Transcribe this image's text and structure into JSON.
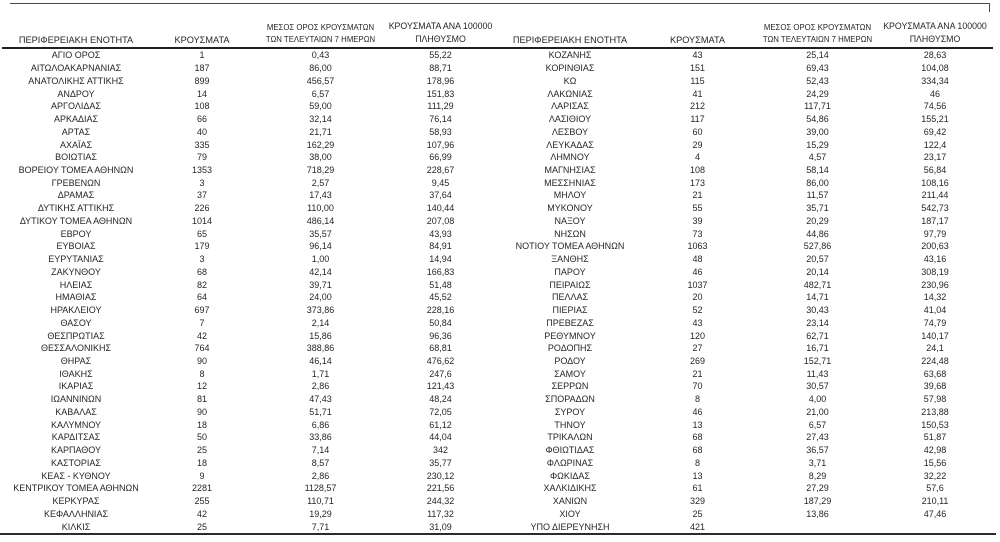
{
  "colors": {
    "text": "#262626",
    "rule": "#2b2b2b",
    "background": "#ffffff"
  },
  "header": {
    "region": "ΠΕΡΙΦΕΡΕΙΑΚΗ ΕΝΟΤΗΤΑ",
    "cases": "ΚΡΟΥΣΜΑΤΑ",
    "avg7_line1": "ΜΕΣΟΣ ΟΡΟΣ ΚΡΟΥΣΜΑΤΩΝ",
    "avg7_line2": "ΤΩΝ ΤΕΛΕΥΤΑΙΩΝ 7 ΗΜΕΡΩΝ",
    "per100k_line1": "ΚΡΟΥΣΜΑΤΑ ΑΝΑ 100000",
    "per100k_line2": "ΠΛΗΘΥΣΜΟ"
  },
  "chart_data": {
    "type": "table",
    "columns": [
      "ΠΕΡΙΦΕΡΕΙΑΚΗ ΕΝΟΤΗΤΑ",
      "ΚΡΟΥΣΜΑΤΑ",
      "ΜΕΣΟΣ ΟΡΟΣ ΚΡΟΥΣΜΑΤΩΝ ΤΩΝ ΤΕΛΕΥΤΑΙΩΝ 7 ΗΜΕΡΩΝ",
      "ΚΡΟΥΣΜΑΤΑ ΑΝΑ 100000 ΠΛΗΘΥΣΜΟ"
    ],
    "left_rows": [
      [
        "ΑΓΙΟ ΟΡΟΣ",
        "1",
        "0,43",
        "55,22"
      ],
      [
        "ΑΙΤΩΛΟΑΚΑΡΝΑΝΙΑΣ",
        "187",
        "86,00",
        "88,71"
      ],
      [
        "ΑΝΑΤΟΛΙΚΗΣ ΑΤΤΙΚΗΣ",
        "899",
        "456,57",
        "178,96"
      ],
      [
        "ΑΝΔΡΟΥ",
        "14",
        "6,57",
        "151,83"
      ],
      [
        "ΑΡΓΟΛΙΔΑΣ",
        "108",
        "59,00",
        "111,29"
      ],
      [
        "ΑΡΚΑΔΙΑΣ",
        "66",
        "32,14",
        "76,14"
      ],
      [
        "ΑΡΤΑΣ",
        "40",
        "21,71",
        "58,93"
      ],
      [
        "ΑΧΑΪΑΣ",
        "335",
        "162,29",
        "107,96"
      ],
      [
        "ΒΟΙΩΤΙΑΣ",
        "79",
        "38,00",
        "66,99"
      ],
      [
        "ΒΟΡΕΙΟΥ ΤΟΜΕΑ ΑΘΗΝΩΝ",
        "1353",
        "718,29",
        "228,67"
      ],
      [
        "ΓΡΕΒΕΝΩΝ",
        "3",
        "2,57",
        "9,45"
      ],
      [
        "ΔΡΑΜΑΣ",
        "37",
        "17,43",
        "37,64"
      ],
      [
        "ΔΥΤΙΚΗΣ ΑΤΤΙΚΗΣ",
        "226",
        "110,00",
        "140,44"
      ],
      [
        "ΔΥΤΙΚΟΥ ΤΟΜΕΑ ΑΘΗΝΩΝ",
        "1014",
        "486,14",
        "207,08"
      ],
      [
        "ΕΒΡΟΥ",
        "65",
        "35,57",
        "43,93"
      ],
      [
        "ΕΥΒΟΙΑΣ",
        "179",
        "96,14",
        "84,91"
      ],
      [
        "ΕΥΡΥΤΑΝΙΑΣ",
        "3",
        "1,00",
        "14,94"
      ],
      [
        "ΖΑΚΥΝΘΟΥ",
        "68",
        "42,14",
        "166,83"
      ],
      [
        "ΗΛΕΙΑΣ",
        "82",
        "39,71",
        "51,48"
      ],
      [
        "ΗΜΑΘΙΑΣ",
        "64",
        "24,00",
        "45,52"
      ],
      [
        "ΗΡΑΚΛΕΙΟΥ",
        "697",
        "373,86",
        "228,16"
      ],
      [
        "ΘΑΣΟΥ",
        "7",
        "2,14",
        "50,84"
      ],
      [
        "ΘΕΣΠΡΩΤΙΑΣ",
        "42",
        "15,86",
        "96,36"
      ],
      [
        "ΘΕΣΣΑΛΟΝΙΚΗΣ",
        "764",
        "388,86",
        "68,81"
      ],
      [
        "ΘΗΡΑΣ",
        "90",
        "46,14",
        "476,62"
      ],
      [
        "ΙΘΑΚΗΣ",
        "8",
        "1,71",
        "247,6"
      ],
      [
        "ΙΚΑΡΙΑΣ",
        "12",
        "2,86",
        "121,43"
      ],
      [
        "ΙΩΑΝΝΙΝΩΝ",
        "81",
        "47,43",
        "48,24"
      ],
      [
        "ΚΑΒΑΛΑΣ",
        "90",
        "51,71",
        "72,05"
      ],
      [
        "ΚΑΛΥΜΝΟΥ",
        "18",
        "6,86",
        "61,12"
      ],
      [
        "ΚΑΡΔΙΤΣΑΣ",
        "50",
        "33,86",
        "44,04"
      ],
      [
        "ΚΑΡΠΑΘΟΥ",
        "25",
        "7,14",
        "342"
      ],
      [
        "ΚΑΣΤΟΡΙΑΣ",
        "18",
        "8,57",
        "35,77"
      ],
      [
        "ΚΕΑΣ - ΚΥΘΝΟΥ",
        "9",
        "2,86",
        "230,12"
      ],
      [
        "ΚΕΝΤΡΙΚΟΥ ΤΟΜΕΑ ΑΘΗΝΩΝ",
        "2281",
        "1128,57",
        "221,56"
      ],
      [
        "ΚΕΡΚΥΡΑΣ",
        "255",
        "110,71",
        "244,32"
      ],
      [
        "ΚΕΦΑΛΛΗΝΙΑΣ",
        "42",
        "19,29",
        "117,32"
      ],
      [
        "ΚΙΛΚΙΣ",
        "25",
        "7,71",
        "31,09"
      ]
    ],
    "right_rows": [
      [
        "ΚΟΖΑΝΗΣ",
        "43",
        "25,14",
        "28,63"
      ],
      [
        "ΚΟΡΙΝΘΙΑΣ",
        "151",
        "69,43",
        "104,08"
      ],
      [
        "ΚΩ",
        "115",
        "52,43",
        "334,34"
      ],
      [
        "ΛΑΚΩΝΙΑΣ",
        "41",
        "24,29",
        "46"
      ],
      [
        "ΛΑΡΙΣΑΣ",
        "212",
        "117,71",
        "74,56"
      ],
      [
        "ΛΑΣΙΘΙΟΥ",
        "117",
        "54,86",
        "155,21"
      ],
      [
        "ΛΕΣΒΟΥ",
        "60",
        "39,00",
        "69,42"
      ],
      [
        "ΛΕΥΚΑΔΑΣ",
        "29",
        "15,29",
        "122,4"
      ],
      [
        "ΛΗΜΝΟΥ",
        "4",
        "4,57",
        "23,17"
      ],
      [
        "ΜΑΓΝΗΣΙΑΣ",
        "108",
        "58,14",
        "56,84"
      ],
      [
        "ΜΕΣΣΗΝΙΑΣ",
        "173",
        "86,00",
        "108,16"
      ],
      [
        "ΜΗΛΟΥ",
        "21",
        "11,57",
        "211,44"
      ],
      [
        "ΜΥΚΟΝΟΥ",
        "55",
        "35,71",
        "542,73"
      ],
      [
        "ΝΑΞΟΥ",
        "39",
        "20,29",
        "187,17"
      ],
      [
        "ΝΗΣΩΝ",
        "73",
        "44,86",
        "97,79"
      ],
      [
        "ΝΟΤΙΟΥ ΤΟΜΕΑ ΑΘΗΝΩΝ",
        "1063",
        "527,86",
        "200,63"
      ],
      [
        "ΞΑΝΘΗΣ",
        "48",
        "20,57",
        "43,16"
      ],
      [
        "ΠΑΡΟΥ",
        "46",
        "20,14",
        "308,19"
      ],
      [
        "ΠΕΙΡΑΙΩΣ",
        "1037",
        "482,71",
        "230,96"
      ],
      [
        "ΠΕΛΛΑΣ",
        "20",
        "14,71",
        "14,32"
      ],
      [
        "ΠΙΕΡΙΑΣ",
        "52",
        "30,43",
        "41,04"
      ],
      [
        "ΠΡΕΒΕΖΑΣ",
        "43",
        "23,14",
        "74,79"
      ],
      [
        "ΡΕΘΥΜΝΟΥ",
        "120",
        "62,71",
        "140,17"
      ],
      [
        "ΡΟΔΟΠΗΣ",
        "27",
        "16,71",
        "24,1"
      ],
      [
        "ΡΟΔΟΥ",
        "269",
        "152,71",
        "224,48"
      ],
      [
        "ΣΑΜΟΥ",
        "21",
        "11,43",
        "63,68"
      ],
      [
        "ΣΕΡΡΩΝ",
        "70",
        "30,57",
        "39,68"
      ],
      [
        "ΣΠΟΡΑΔΩΝ",
        "8",
        "4,00",
        "57,98"
      ],
      [
        "ΣΥΡΟΥ",
        "46",
        "21,00",
        "213,88"
      ],
      [
        "ΤΗΝΟΥ",
        "13",
        "6,57",
        "150,53"
      ],
      [
        "ΤΡΙΚΑΛΩΝ",
        "68",
        "27,43",
        "51,87"
      ],
      [
        "ΦΘΙΩΤΙΔΑΣ",
        "68",
        "36,57",
        "42,98"
      ],
      [
        "ΦΛΩΡΙΝΑΣ",
        "8",
        "3,71",
        "15,56"
      ],
      [
        "ΦΩΚΙΔΑΣ",
        "13",
        "8,29",
        "32,22"
      ],
      [
        "ΧΑΛΚΙΔΙΚΗΣ",
        "61",
        "27,29",
        "57,6"
      ],
      [
        "ΧΑΝΙΩΝ",
        "329",
        "187,29",
        "210,11"
      ],
      [
        "ΧΙΟΥ",
        "25",
        "13,86",
        "47,46"
      ],
      [
        "ΥΠΟ ΔΙΕΡΕΥΝΗΣΗ",
        "421",
        "",
        ""
      ]
    ]
  }
}
